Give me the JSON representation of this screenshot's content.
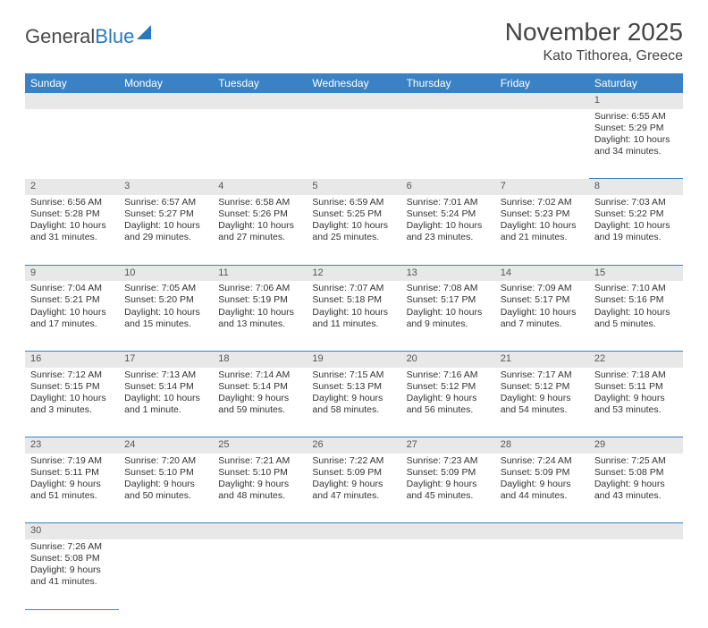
{
  "logo": {
    "text1": "General",
    "text2": "Blue"
  },
  "title": "November 2025",
  "location": "Kato Tithorea, Greece",
  "colors": {
    "header_bg": "#3b82c4",
    "header_fg": "#ffffff",
    "daynum_bg": "#e8e8e8",
    "row_border": "#3b82c4",
    "text": "#333333",
    "logo_gray": "#4a4a4a",
    "logo_blue": "#2a78bd"
  },
  "weekdays": [
    "Sunday",
    "Monday",
    "Tuesday",
    "Wednesday",
    "Thursday",
    "Friday",
    "Saturday"
  ],
  "weeks": [
    [
      null,
      null,
      null,
      null,
      null,
      null,
      {
        "n": "1",
        "sr": "Sunrise: 6:55 AM",
        "ss": "Sunset: 5:29 PM",
        "dl": "Daylight: 10 hours and 34 minutes."
      }
    ],
    [
      {
        "n": "2",
        "sr": "Sunrise: 6:56 AM",
        "ss": "Sunset: 5:28 PM",
        "dl": "Daylight: 10 hours and 31 minutes."
      },
      {
        "n": "3",
        "sr": "Sunrise: 6:57 AM",
        "ss": "Sunset: 5:27 PM",
        "dl": "Daylight: 10 hours and 29 minutes."
      },
      {
        "n": "4",
        "sr": "Sunrise: 6:58 AM",
        "ss": "Sunset: 5:26 PM",
        "dl": "Daylight: 10 hours and 27 minutes."
      },
      {
        "n": "5",
        "sr": "Sunrise: 6:59 AM",
        "ss": "Sunset: 5:25 PM",
        "dl": "Daylight: 10 hours and 25 minutes."
      },
      {
        "n": "6",
        "sr": "Sunrise: 7:01 AM",
        "ss": "Sunset: 5:24 PM",
        "dl": "Daylight: 10 hours and 23 minutes."
      },
      {
        "n": "7",
        "sr": "Sunrise: 7:02 AM",
        "ss": "Sunset: 5:23 PM",
        "dl": "Daylight: 10 hours and 21 minutes."
      },
      {
        "n": "8",
        "sr": "Sunrise: 7:03 AM",
        "ss": "Sunset: 5:22 PM",
        "dl": "Daylight: 10 hours and 19 minutes."
      }
    ],
    [
      {
        "n": "9",
        "sr": "Sunrise: 7:04 AM",
        "ss": "Sunset: 5:21 PM",
        "dl": "Daylight: 10 hours and 17 minutes."
      },
      {
        "n": "10",
        "sr": "Sunrise: 7:05 AM",
        "ss": "Sunset: 5:20 PM",
        "dl": "Daylight: 10 hours and 15 minutes."
      },
      {
        "n": "11",
        "sr": "Sunrise: 7:06 AM",
        "ss": "Sunset: 5:19 PM",
        "dl": "Daylight: 10 hours and 13 minutes."
      },
      {
        "n": "12",
        "sr": "Sunrise: 7:07 AM",
        "ss": "Sunset: 5:18 PM",
        "dl": "Daylight: 10 hours and 11 minutes."
      },
      {
        "n": "13",
        "sr": "Sunrise: 7:08 AM",
        "ss": "Sunset: 5:17 PM",
        "dl": "Daylight: 10 hours and 9 minutes."
      },
      {
        "n": "14",
        "sr": "Sunrise: 7:09 AM",
        "ss": "Sunset: 5:17 PM",
        "dl": "Daylight: 10 hours and 7 minutes."
      },
      {
        "n": "15",
        "sr": "Sunrise: 7:10 AM",
        "ss": "Sunset: 5:16 PM",
        "dl": "Daylight: 10 hours and 5 minutes."
      }
    ],
    [
      {
        "n": "16",
        "sr": "Sunrise: 7:12 AM",
        "ss": "Sunset: 5:15 PM",
        "dl": "Daylight: 10 hours and 3 minutes."
      },
      {
        "n": "17",
        "sr": "Sunrise: 7:13 AM",
        "ss": "Sunset: 5:14 PM",
        "dl": "Daylight: 10 hours and 1 minute."
      },
      {
        "n": "18",
        "sr": "Sunrise: 7:14 AM",
        "ss": "Sunset: 5:14 PM",
        "dl": "Daylight: 9 hours and 59 minutes."
      },
      {
        "n": "19",
        "sr": "Sunrise: 7:15 AM",
        "ss": "Sunset: 5:13 PM",
        "dl": "Daylight: 9 hours and 58 minutes."
      },
      {
        "n": "20",
        "sr": "Sunrise: 7:16 AM",
        "ss": "Sunset: 5:12 PM",
        "dl": "Daylight: 9 hours and 56 minutes."
      },
      {
        "n": "21",
        "sr": "Sunrise: 7:17 AM",
        "ss": "Sunset: 5:12 PM",
        "dl": "Daylight: 9 hours and 54 minutes."
      },
      {
        "n": "22",
        "sr": "Sunrise: 7:18 AM",
        "ss": "Sunset: 5:11 PM",
        "dl": "Daylight: 9 hours and 53 minutes."
      }
    ],
    [
      {
        "n": "23",
        "sr": "Sunrise: 7:19 AM",
        "ss": "Sunset: 5:11 PM",
        "dl": "Daylight: 9 hours and 51 minutes."
      },
      {
        "n": "24",
        "sr": "Sunrise: 7:20 AM",
        "ss": "Sunset: 5:10 PM",
        "dl": "Daylight: 9 hours and 50 minutes."
      },
      {
        "n": "25",
        "sr": "Sunrise: 7:21 AM",
        "ss": "Sunset: 5:10 PM",
        "dl": "Daylight: 9 hours and 48 minutes."
      },
      {
        "n": "26",
        "sr": "Sunrise: 7:22 AM",
        "ss": "Sunset: 5:09 PM",
        "dl": "Daylight: 9 hours and 47 minutes."
      },
      {
        "n": "27",
        "sr": "Sunrise: 7:23 AM",
        "ss": "Sunset: 5:09 PM",
        "dl": "Daylight: 9 hours and 45 minutes."
      },
      {
        "n": "28",
        "sr": "Sunrise: 7:24 AM",
        "ss": "Sunset: 5:09 PM",
        "dl": "Daylight: 9 hours and 44 minutes."
      },
      {
        "n": "29",
        "sr": "Sunrise: 7:25 AM",
        "ss": "Sunset: 5:08 PM",
        "dl": "Daylight: 9 hours and 43 minutes."
      }
    ],
    [
      {
        "n": "30",
        "sr": "Sunrise: 7:26 AM",
        "ss": "Sunset: 5:08 PM",
        "dl": "Daylight: 9 hours and 41 minutes."
      },
      null,
      null,
      null,
      null,
      null,
      null
    ]
  ]
}
